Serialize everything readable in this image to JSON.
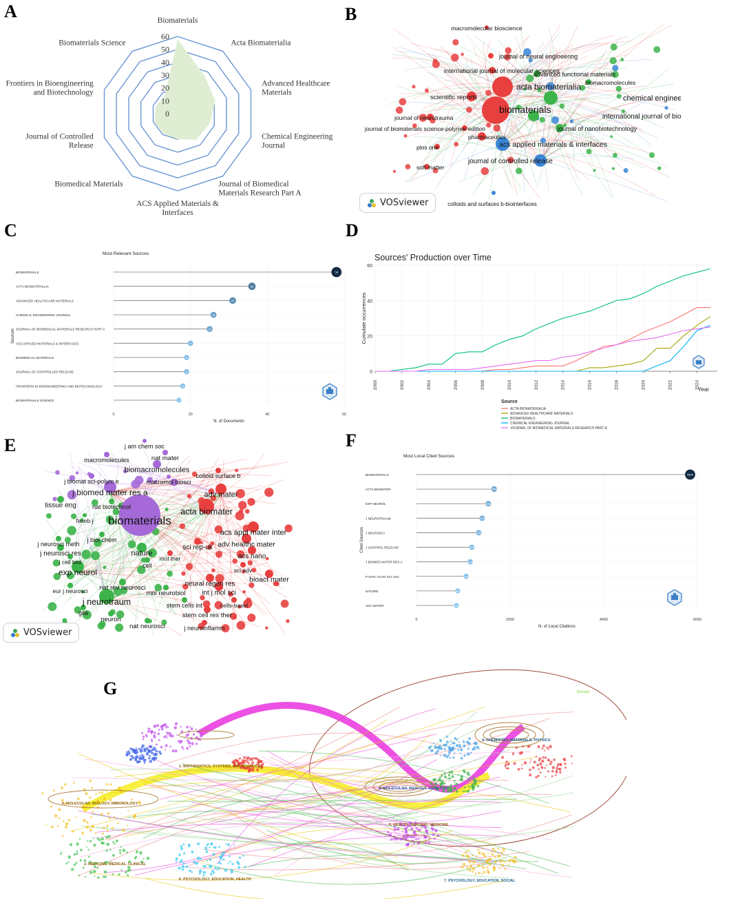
{
  "chart_data": [
    {
      "panel": "A",
      "type": "radar",
      "ticks": [
        "0",
        "10",
        "20",
        "30",
        "40",
        "50",
        "60"
      ],
      "rmax": 60,
      "axes": [
        "Biomaterials",
        "Acta Biomaterialia",
        "Advanced Healthcare Materials",
        "Chemical Engineering Journal",
        "Journal of Biomedical Materials Research Part A",
        "ACS Applied Materials & Interfaces",
        "Biomedical Materials",
        "Journal of Controlled Release",
        "Frontiers in Bioengineering and Biotechnology",
        "Biomaterials Science"
      ],
      "values": [
        58,
        36,
        31,
        26,
        25,
        20,
        19,
        19,
        18,
        17
      ],
      "fill_color": "#dfeed3",
      "line_color": "#6b96d3"
    },
    {
      "panel": "B",
      "type": "network",
      "tool_label": "VOSviewer",
      "nodes": [
        {
          "label": "biomaterials",
          "cluster": "red"
        },
        {
          "label": "acta biomaterialia",
          "cluster": "red"
        },
        {
          "label": "macromolecular bioscience",
          "cluster": "red"
        },
        {
          "label": "journal of neural engineering",
          "cluster": "red"
        },
        {
          "label": "international journal of molecular sciences",
          "cluster": "red"
        },
        {
          "label": "scientific reports",
          "cluster": "red"
        },
        {
          "label": "journal of neurotrauma",
          "cluster": "red"
        },
        {
          "label": "journal of biomaterials science-polymer edition",
          "cluster": "red"
        },
        {
          "label": "pharmaceutics",
          "cluster": "red"
        },
        {
          "label": "plos one",
          "cluster": "red"
        },
        {
          "label": "soft matter",
          "cluster": "red"
        },
        {
          "label": "advanced functional materials",
          "cluster": "green"
        },
        {
          "label": "biomacromolecules",
          "cluster": "green"
        },
        {
          "label": "chemical engineering journal",
          "cluster": "green"
        },
        {
          "label": "international journal of biological macromolecules",
          "cluster": "green"
        },
        {
          "label": "journal of nanobiotechnology",
          "cluster": "green"
        },
        {
          "label": "acs applied materials & interfaces",
          "cluster": "blue"
        },
        {
          "label": "journal of controlled release",
          "cluster": "blue"
        },
        {
          "label": "colloids and surfaces b-biointerfaces",
          "cluster": "blue"
        }
      ]
    },
    {
      "panel": "C",
      "type": "lollipop",
      "title": "Most Relevant Sources",
      "xlabel": "N. of Documents",
      "ylabel": "Sources",
      "xlim": [
        0,
        60
      ],
      "xticks": [
        "0",
        "20",
        "40",
        "60"
      ],
      "categories": [
        "BIOMATERIALS",
        "ACTA BIOMATERIALIA",
        "ADVANCED HEALTHCARE MATERIALS",
        "CHEMICAL ENGINEERING JOURNAL",
        "JOURNAL OF BIOMEDICAL MATERIALS RESEARCH PART A",
        "ACS APPLIED MATERIALS & INTERFACES",
        "BIOMEDICAL MATERIALS",
        "JOURNAL OF CONTROLLED RELEASE",
        "FRONTIERS IN BIOENGINEERING AND BIOTECHNOLOGY",
        "BIOMATERIALS SCIENCE"
      ],
      "values": [
        58,
        36,
        31,
        26,
        25,
        20,
        19,
        19,
        18,
        17
      ],
      "labels": [
        "58",
        "36",
        "31",
        "26",
        "25",
        "20",
        "19",
        "19",
        "18",
        "17"
      ]
    },
    {
      "panel": "D",
      "type": "line",
      "title": "Sources' Production over Time",
      "xlabel": "Year",
      "ylabel": "Cumulate occurrences",
      "xlim": [
        2000,
        2025
      ],
      "ylim": [
        0,
        60
      ],
      "xticks": [
        "2000",
        "2002",
        "2004",
        "2006",
        "2008",
        "2010",
        "2012",
        "2014",
        "2016",
        "2018",
        "2020",
        "2022",
        "2024"
      ],
      "yticks": [
        "0",
        "20",
        "40",
        "60"
      ],
      "legend_title": "Source",
      "x": [
        2000,
        2001,
        2002,
        2003,
        2004,
        2005,
        2006,
        2007,
        2008,
        2009,
        2010,
        2011,
        2012,
        2013,
        2014,
        2015,
        2016,
        2017,
        2018,
        2019,
        2020,
        2021,
        2022,
        2023,
        2024,
        2025
      ],
      "series": [
        {
          "name": "ACTA BIOMATERIALIA",
          "color": "#f8766d",
          "values": [
            0,
            0,
            0,
            0,
            0,
            0,
            0,
            0,
            0,
            1,
            1,
            2,
            3,
            3,
            3,
            6,
            10,
            14,
            15,
            18,
            22,
            25,
            28,
            32,
            36,
            36
          ]
        },
        {
          "name": "ADVANCED HEALTHCARE MATERIALS",
          "color": "#a3a500",
          "values": [
            0,
            0,
            0,
            0,
            0,
            0,
            0,
            0,
            0,
            0,
            0,
            0,
            0,
            0,
            0,
            0,
            2,
            2,
            3,
            4,
            6,
            13,
            13,
            20,
            26,
            31
          ]
        },
        {
          "name": "BIOMATERIALS",
          "color": "#00bf7d",
          "values": [
            0,
            0,
            1,
            2,
            4,
            4,
            10,
            11,
            11,
            15,
            18,
            20,
            24,
            27,
            30,
            32,
            34,
            37,
            40,
            41,
            44,
            48,
            51,
            54,
            56,
            58
          ]
        },
        {
          "name": "CHEMICAL ENGINEERING JOURNAL",
          "color": "#00b0f6",
          "values": [
            0,
            0,
            0,
            0,
            0,
            0,
            0,
            0,
            0,
            0,
            0,
            0,
            0,
            0,
            0,
            0,
            0,
            0,
            0,
            0,
            0,
            3,
            6,
            14,
            23,
            26
          ]
        },
        {
          "name": "JOURNAL OF BIOMEDICAL MATERIALS RESEARCH PART A",
          "color": "#e76bf3",
          "values": [
            0,
            0,
            0,
            0,
            1,
            1,
            1,
            1,
            2,
            3,
            4,
            5,
            6,
            6,
            8,
            9,
            11,
            13,
            15,
            17,
            18,
            19,
            21,
            23,
            24,
            25
          ]
        }
      ]
    },
    {
      "panel": "E",
      "type": "network",
      "tool_label": "VOSviewer",
      "nodes": [
        {
          "label": "biomaterials",
          "cluster": "purple"
        },
        {
          "label": "j am chem soc",
          "cluster": "purple"
        },
        {
          "label": "macromolecules",
          "cluster": "purple"
        },
        {
          "label": "nat mater",
          "cluster": "purple"
        },
        {
          "label": "biomacromolecules",
          "cluster": "purple"
        },
        {
          "label": "j biomat sci-polym e",
          "cluster": "purple"
        },
        {
          "label": "macromol biosci",
          "cluster": "purple"
        },
        {
          "label": "j biomed mater res a",
          "cluster": "purple"
        },
        {
          "label": "colloid surface b",
          "cluster": "red"
        },
        {
          "label": "adv mater",
          "cluster": "red"
        },
        {
          "label": "acta biomater",
          "cluster": "red"
        },
        {
          "label": "acs appl mater inter",
          "cluster": "red"
        },
        {
          "label": "adv healthc mater",
          "cluster": "red"
        },
        {
          "label": "sci rep-uk",
          "cluster": "red"
        },
        {
          "label": "acs nano",
          "cluster": "red"
        },
        {
          "label": "sci adv",
          "cluster": "red"
        },
        {
          "label": "bioact mater",
          "cluster": "red"
        },
        {
          "label": "neural regen res",
          "cluster": "red"
        },
        {
          "label": "int j mol sci",
          "cluster": "red"
        },
        {
          "label": "cells-basel",
          "cluster": "red"
        },
        {
          "label": "stem cell res ther",
          "cluster": "red"
        },
        {
          "label": "j neuroinflamm",
          "cluster": "red"
        },
        {
          "label": "mol ther",
          "cluster": "red"
        },
        {
          "label": "tissue eng",
          "cluster": "green"
        },
        {
          "label": "nat biotechnol",
          "cluster": "green"
        },
        {
          "label": "faseb j",
          "cluster": "green"
        },
        {
          "label": "j biol chem",
          "cluster": "green"
        },
        {
          "label": "j neurosci meth",
          "cluster": "green"
        },
        {
          "label": "j neurosci res",
          "cluster": "green"
        },
        {
          "label": "nature",
          "cluster": "green"
        },
        {
          "label": "j cell biol",
          "cluster": "green"
        },
        {
          "label": "cell",
          "cluster": "green"
        },
        {
          "label": "exp neurol",
          "cluster": "green"
        },
        {
          "label": "nat rev neurosci",
          "cluster": "green"
        },
        {
          "label": "mol neurobiol",
          "cluster": "green"
        },
        {
          "label": "eur j neurosci",
          "cluster": "green"
        },
        {
          "label": "j neurotraum",
          "cluster": "green"
        },
        {
          "label": "stem cells int",
          "cluster": "green"
        },
        {
          "label": "glia",
          "cluster": "green"
        },
        {
          "label": "neuron",
          "cluster": "green"
        },
        {
          "label": "nat neurosci",
          "cluster": "green"
        }
      ]
    },
    {
      "panel": "F",
      "type": "lollipop",
      "title": "Most Local Cited Sources",
      "xlabel": "N. of Local Citations",
      "ylabel": "Cited Sources",
      "xlim": [
        0,
        6000
      ],
      "xticks": [
        "0",
        "2000",
        "4000",
        "6000"
      ],
      "categories": [
        "BIOMATERIALS",
        "ACTA BIOMATER",
        "EXP NEUROL",
        "J NEUROTRAUM",
        "J NEUROSCI",
        "J CONTROL RELEASE",
        "J BIOMED MATER RES A",
        "P NATL ACAD SCI USA",
        "NATURE",
        "ADV MATER"
      ],
      "values": [
        5846,
        1659,
        1535,
        1404,
        1330,
        1183,
        1149,
        1060,
        881,
        853
      ],
      "labels": [
        "5846",
        "1659",
        "1535",
        "1404",
        "1330",
        "1183",
        "1149",
        "1060",
        "881",
        "853"
      ]
    },
    {
      "panel": "G",
      "type": "dual-map overlay",
      "clusters": [
        {
          "label": "4. MOLECULAR, BIOLOGY, IMMUNOLOGY",
          "side": "left"
        },
        {
          "label": "2. MEDICINE, MEDICAL, CLINICAL",
          "side": "left"
        },
        {
          "label": "6. PSYCHOLOGY, EDUCATION, HEALTH",
          "side": "left"
        },
        {
          "label": "1. MATHEMATICS, SYSTEMS, MATHEMATICAL",
          "side": "left"
        },
        {
          "label": "8. MOLECULAR, BIOLOGY, GENETICS",
          "side": "right"
        },
        {
          "label": "4. CHEMISTRY, MATERIALS, PHYSICS",
          "side": "right"
        },
        {
          "label": "5. HEALTH, NURSING, MEDICINE",
          "side": "right"
        },
        {
          "label": "7. PSYCHOLOGY, EDUCATION, SOCIAL",
          "side": "right"
        }
      ],
      "legend_label": "Blondel"
    }
  ]
}
